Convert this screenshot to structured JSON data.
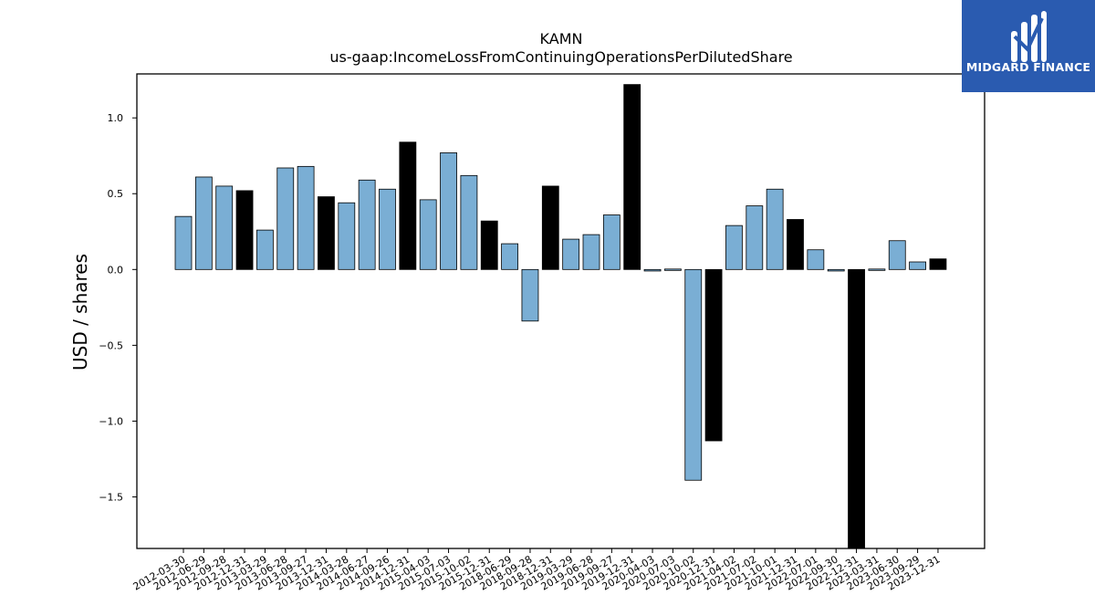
{
  "chart_data": {
    "type": "bar",
    "title": "KAMN",
    "subtitle": "us-gaap:IncomeLossFromContinuingOperationsPerDilutedShare",
    "xlabel": "",
    "ylabel": "USD / shares",
    "ylim": [
      -1.84,
      1.29
    ],
    "yticks": [
      -1.5,
      -1.0,
      -0.5,
      0.0,
      0.5,
      1.0
    ],
    "ytick_labels": [
      "−1.5",
      "−1.0",
      "−0.5",
      "0.0",
      "0.5",
      "1.0"
    ],
    "grid": false,
    "colors": {
      "quarterly": "#7aaed4",
      "annual": "#000000"
    },
    "categories": [
      "2012-03-30",
      "2012-06-29",
      "2012-09-28",
      "2012-12-31",
      "2013-03-29",
      "2013-06-28",
      "2013-09-27",
      "2013-12-31",
      "2014-03-28",
      "2014-06-27",
      "2014-09-26",
      "2014-12-31",
      "2015-04-03",
      "2015-07-03",
      "2015-10-02",
      "2015-12-31",
      "2018-06-29",
      "2018-09-28",
      "2018-12-31",
      "2019-03-29",
      "2019-06-28",
      "2019-09-27",
      "2019-12-31",
      "2020-04-03",
      "2020-07-03",
      "2020-10-02",
      "2020-12-31",
      "2021-04-02",
      "2021-07-02",
      "2021-10-01",
      "2021-12-31",
      "2022-07-01",
      "2022-09-30",
      "2022-12-31",
      "2023-03-31",
      "2023-06-30",
      "2023-09-29",
      "2023-12-31"
    ],
    "values": [
      0.35,
      0.61,
      0.55,
      0.52,
      0.26,
      0.67,
      0.68,
      0.48,
      0.44,
      0.59,
      0.53,
      0.84,
      0.46,
      0.77,
      0.62,
      0.32,
      0.17,
      -0.34,
      0.55,
      0.2,
      0.23,
      0.36,
      1.22,
      -0.01,
      0.0,
      -1.39,
      -1.13,
      0.29,
      0.42,
      0.53,
      0.33,
      0.13,
      -0.01,
      -1.84,
      0.0,
      0.19,
      0.05,
      0.07
    ],
    "annual": [
      false,
      false,
      false,
      true,
      false,
      false,
      false,
      true,
      false,
      false,
      false,
      true,
      false,
      false,
      false,
      true,
      false,
      false,
      true,
      false,
      false,
      false,
      true,
      false,
      false,
      false,
      true,
      false,
      false,
      false,
      true,
      false,
      false,
      true,
      false,
      false,
      false,
      true
    ]
  },
  "logo": {
    "text": "MIDGARD FINANCE",
    "icon": "midgard-logo-icon"
  }
}
